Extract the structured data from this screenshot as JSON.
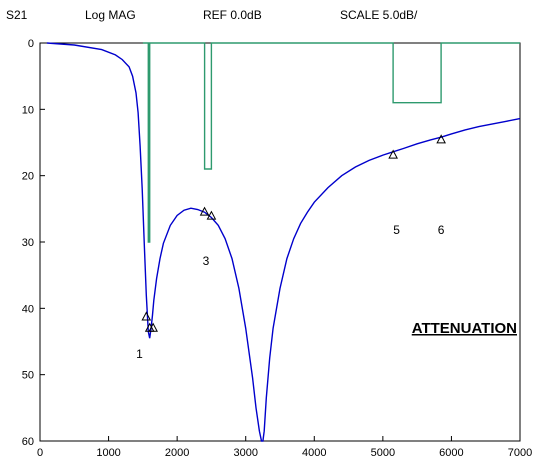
{
  "header": {
    "trace": "S21",
    "format": "Log MAG",
    "ref": "REF 0.0dB",
    "scale": "SCALE 5.0dB/"
  },
  "chart_data": {
    "type": "line",
    "title": "",
    "xlabel": "",
    "ylabel": "",
    "xlim": [
      0,
      7000
    ],
    "ylim": [
      0,
      60
    ],
    "y_inverted": true,
    "grid": false,
    "x_ticks": [
      "0",
      "1000",
      "2000",
      "3000",
      "4000",
      "5000",
      "6000",
      "7000"
    ],
    "y_ticks": [
      "0",
      "10",
      "20",
      "30",
      "40",
      "50",
      "60"
    ],
    "series": [
      {
        "color": "#0000cc",
        "x": [
          100,
          500,
          900,
          1100,
          1200,
          1300,
          1350,
          1400,
          1430,
          1460,
          1490,
          1520,
          1550,
          1580,
          1600,
          1620,
          1640,
          1660,
          1700,
          1750,
          1800,
          1900,
          2000,
          2100,
          2200,
          2300,
          2400,
          2500,
          2600,
          2700,
          2800,
          2900,
          3000,
          3100,
          3150,
          3200,
          3230,
          3250,
          3270,
          3300,
          3350,
          3400,
          3500,
          3600,
          3700,
          3800,
          3900,
          4000,
          4200,
          4400,
          4600,
          4800,
          5000,
          5150,
          5300,
          5500,
          5700,
          5850,
          6000,
          6200,
          6400,
          6600,
          6800,
          7000
        ],
        "y": [
          0,
          0.3,
          1.0,
          1.8,
          2.5,
          3.6,
          5.0,
          7.5,
          10.5,
          15.5,
          22.0,
          30.0,
          38.0,
          43.5,
          44.5,
          43.0,
          41.0,
          38.8,
          35.5,
          32.5,
          30.2,
          27.5,
          26.0,
          25.2,
          24.9,
          25.1,
          25.5,
          26.3,
          27.5,
          29.5,
          32.5,
          37.0,
          43.0,
          50.5,
          55.0,
          58.5,
          60.0,
          60.0,
          58.5,
          53.5,
          47.5,
          43.0,
          37.0,
          32.5,
          29.5,
          27.2,
          25.5,
          24.0,
          21.8,
          20.0,
          18.7,
          17.7,
          16.9,
          16.4,
          15.9,
          15.2,
          14.6,
          14.2,
          13.7,
          13.1,
          12.6,
          12.2,
          11.8,
          11.4
        ]
      },
      {
        "color": "#2e9a6e",
        "x": [
          1500,
          1500,
          1580,
          1580,
          1600,
          1600,
          2400,
          2400,
          2500,
          2500,
          5150,
          5150,
          5850,
          5850,
          7000
        ],
        "y": [
          0,
          0,
          0,
          30,
          30,
          0,
          0,
          19,
          19,
          0,
          0,
          9,
          9,
          0,
          0
        ]
      }
    ],
    "markers": [
      {
        "x": 1550,
        "y": 41.3
      },
      {
        "x": 1600,
        "y": 43.0
      },
      {
        "x": 1650,
        "y": 43.0
      },
      {
        "x": 2400,
        "y": 25.5
      },
      {
        "x": 2500,
        "y": 26.1
      },
      {
        "x": 5150,
        "y": 16.9
      },
      {
        "x": 5850,
        "y": 14.6
      }
    ],
    "annotations": [
      {
        "text": "1",
        "x": 1450,
        "y": 47.5
      },
      {
        "text": "3",
        "x": 2420,
        "y": 33.5
      },
      {
        "text": "5",
        "x": 5200,
        "y": 28.8
      },
      {
        "text": "6",
        "x": 5850,
        "y": 28.8
      }
    ],
    "label": "ATTENUATION"
  }
}
